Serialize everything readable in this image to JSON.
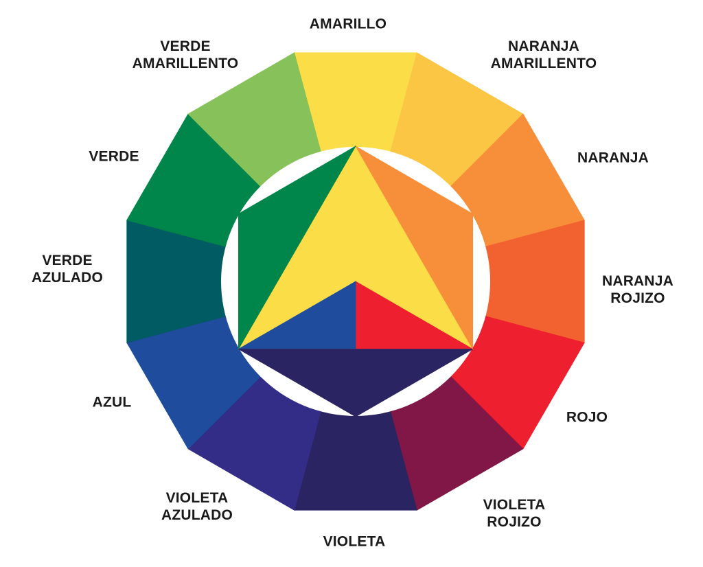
{
  "segments": [
    {
      "key": "amarillo",
      "lines": [
        "AMARILLO"
      ],
      "color": "#fbdd47"
    },
    {
      "key": "naranja_amarillento",
      "lines": [
        "NARANJA",
        "AMARILLENTO"
      ],
      "color": "#fcc645"
    },
    {
      "key": "naranja",
      "lines": [
        "NARANJA"
      ],
      "color": "#f78f3a"
    },
    {
      "key": "naranja_rojizo",
      "lines": [
        "NARANJA",
        "ROJIZO"
      ],
      "color": "#f26130"
    },
    {
      "key": "rojo",
      "lines": [
        "ROJO"
      ],
      "color": "#ee1f2f"
    },
    {
      "key": "violeta_rojizo",
      "lines": [
        "VIOLETA",
        "ROJIZO"
      ],
      "color": "#811746"
    },
    {
      "key": "violeta",
      "lines": [
        "VIOLETA"
      ],
      "color": "#2b2462"
    },
    {
      "key": "violeta_azulado",
      "lines": [
        "VIOLETA",
        "AZULADO"
      ],
      "color": "#342d87"
    },
    {
      "key": "azul",
      "lines": [
        "AZUL"
      ],
      "color": "#1f4c9c"
    },
    {
      "key": "verde_azulado",
      "lines": [
        "VERDE",
        "AZULADO"
      ],
      "color": "#005b63"
    },
    {
      "key": "verde",
      "lines": [
        "VERDE"
      ],
      "color": "#00854a"
    },
    {
      "key": "verde_amarillento",
      "lines": [
        "VERDE",
        "AMARILLENTO"
      ],
      "color": "#86c15a"
    }
  ],
  "inner": {
    "primary_triangle": {
      "yellow": "#fbdd47",
      "red": "#ee1f2f",
      "blue": "#1f4c9c"
    },
    "secondary_triangles": {
      "orange": "#f78f3a",
      "violet": "#2b2462",
      "green": "#00854a"
    }
  }
}
